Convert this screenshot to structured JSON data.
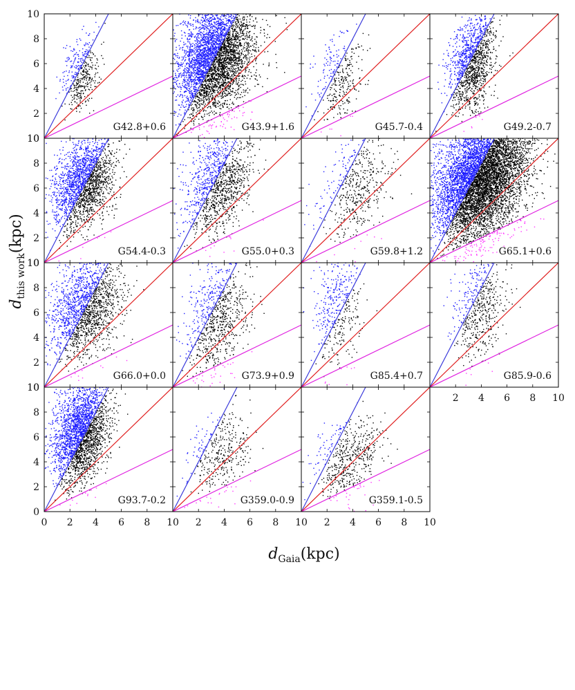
{
  "chart_data": {
    "type": "scatter",
    "grid_layout": {
      "rows": 4,
      "cols": 4
    },
    "x_range": [
      0,
      10
    ],
    "y_range": [
      0,
      10
    ],
    "x_ticks": [
      0,
      2,
      4,
      6,
      8,
      10
    ],
    "y_ticks": [
      0,
      2,
      4,
      6,
      8,
      10
    ],
    "xlabel_main": "d",
    "xlabel_sub": "Gaia",
    "xlabel_unit": "(kpc)",
    "ylabel_main": "d",
    "ylabel_sub": "this work",
    "ylabel_unit": "(kpc)",
    "reference_lines": [
      {
        "name": "y = 2x",
        "slope": 2.0,
        "color": "#3a3adb"
      },
      {
        "name": "y = x",
        "slope": 1.0,
        "color": "#e02020"
      },
      {
        "name": "y = 0.5x",
        "slope": 0.5,
        "color": "#e020e0"
      }
    ],
    "series_colors": {
      "above_2x": "#1a1aff",
      "between": "#000000",
      "below_half": "#ff33ff"
    },
    "panels": [
      {
        "name": "G42.8+0.6",
        "row": 0,
        "col": 0,
        "n": 420,
        "cx": 2.8,
        "cy": 5.2,
        "sx": 0.7,
        "sy": 1.4,
        "rho": 0.2
      },
      {
        "name": "G43.9+1.6",
        "row": 0,
        "col": 1,
        "n": 4200,
        "cx": 3.2,
        "cy": 6.4,
        "sx": 1.5,
        "sy": 2.3,
        "rho": 0.3
      },
      {
        "name": "G45.7-0.4",
        "row": 0,
        "col": 2,
        "n": 330,
        "cx": 2.9,
        "cy": 4.9,
        "sx": 0.9,
        "sy": 1.8,
        "rho": 0.2
      },
      {
        "name": "G49.2-0.7",
        "row": 0,
        "col": 3,
        "n": 1300,
        "cx": 3.3,
        "cy": 6.1,
        "sx": 0.9,
        "sy": 2.0,
        "rho": 0.3
      },
      {
        "name": "G54.4-0.3",
        "row": 1,
        "col": 0,
        "n": 2000,
        "cx": 3.0,
        "cy": 6.4,
        "sx": 1.2,
        "sy": 1.8,
        "rho": 0.3
      },
      {
        "name": "G55.0+0.3",
        "row": 1,
        "col": 1,
        "n": 1200,
        "cx": 3.5,
        "cy": 6.3,
        "sx": 1.3,
        "sy": 2.1,
        "rho": 0.3
      },
      {
        "name": "G59.8+1.2",
        "row": 1,
        "col": 2,
        "n": 500,
        "cx": 4.3,
        "cy": 6.2,
        "sx": 1.3,
        "sy": 2.3,
        "rho": 0.4
      },
      {
        "name": "G65.1+0.6",
        "row": 1,
        "col": 3,
        "n": 7000,
        "cx": 3.9,
        "cy": 6.8,
        "sx": 1.8,
        "sy": 2.5,
        "rho": 0.35
      },
      {
        "name": "G66.0+0.0",
        "row": 2,
        "col": 0,
        "n": 1700,
        "cx": 3.2,
        "cy": 6.4,
        "sx": 1.4,
        "sy": 2.1,
        "rho": 0.3
      },
      {
        "name": "G73.9+0.9",
        "row": 2,
        "col": 1,
        "n": 800,
        "cx": 3.4,
        "cy": 5.6,
        "sx": 1.2,
        "sy": 2.3,
        "rho": 0.3
      },
      {
        "name": "G85.4+0.7",
        "row": 2,
        "col": 2,
        "n": 420,
        "cx": 2.8,
        "cy": 6.4,
        "sx": 0.9,
        "sy": 2.2,
        "rho": 0.2
      },
      {
        "name": "G85.9-0.6",
        "row": 2,
        "col": 3,
        "n": 520,
        "cx": 3.8,
        "cy": 6.2,
        "sx": 1.0,
        "sy": 2.2,
        "rho": 0.3
      },
      {
        "name": "G93.7-0.2",
        "row": 3,
        "col": 0,
        "n": 2600,
        "cx": 2.8,
        "cy": 6.4,
        "sx": 1.1,
        "sy": 2.1,
        "rho": 0.3
      },
      {
        "name": "G359.0-0.9",
        "row": 3,
        "col": 1,
        "n": 380,
        "cx": 3.6,
        "cy": 4.6,
        "sx": 1.3,
        "sy": 1.8,
        "rho": 0.3
      },
      {
        "name": "G359.1-0.5",
        "row": 3,
        "col": 2,
        "n": 520,
        "cx": 3.6,
        "cy": 4.2,
        "sx": 1.3,
        "sy": 1.6,
        "rho": 0.3
      }
    ]
  }
}
